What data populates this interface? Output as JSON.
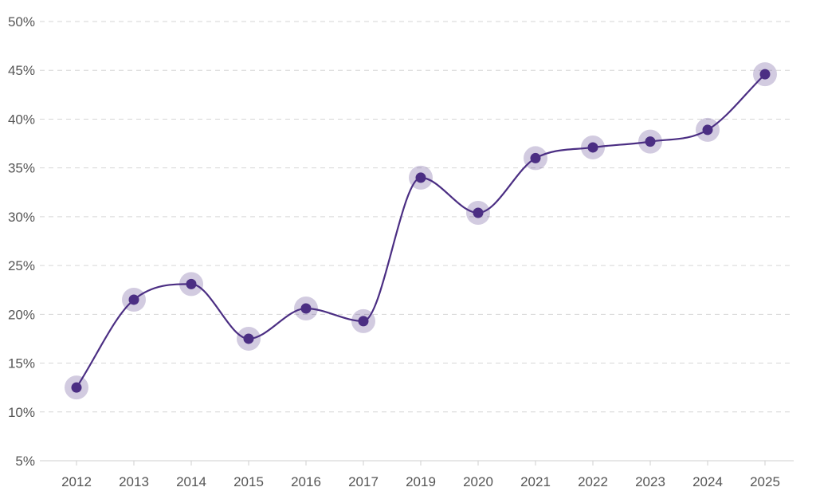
{
  "chart_data": {
    "type": "line",
    "title": "",
    "xlabel": "",
    "ylabel": "",
    "categories": [
      "2012",
      "2013",
      "2014",
      "2015",
      "2016",
      "2017",
      "2019",
      "2020",
      "2021",
      "2022",
      "2023",
      "2024",
      "2025"
    ],
    "values": [
      12.5,
      21.5,
      23.1,
      17.5,
      20.6,
      19.3,
      34.0,
      30.4,
      36.0,
      37.1,
      37.7,
      38.9,
      44.6
    ],
    "ylim": [
      5,
      50
    ],
    "y_ticks": [
      "5%",
      "10%",
      "15%",
      "20%",
      "25%",
      "30%",
      "35%",
      "40%",
      "45%",
      "50%"
    ],
    "y_tick_values": [
      5,
      10,
      15,
      20,
      25,
      30,
      35,
      40,
      45,
      50
    ],
    "grid": "horizontal dashed",
    "legend": "none",
    "colors": {
      "series": "#4b2e83",
      "grid": "#d6d6d6",
      "text": "#555555"
    }
  }
}
